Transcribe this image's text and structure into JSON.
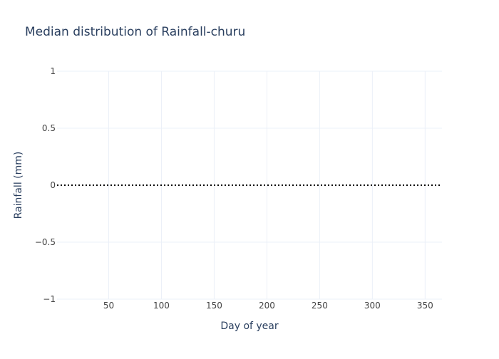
{
  "chart_data": {
    "type": "line",
    "title": "Median distribution of Rainfall-churu",
    "xlabel": "Day of year",
    "ylabel": "Rainfall (mm)",
    "xlim": [
      1,
      366
    ],
    "ylim": [
      -1,
      1
    ],
    "x_ticks": [
      50,
      100,
      150,
      200,
      250,
      300,
      350
    ],
    "y_ticks": [
      1,
      0.5,
      0,
      -0.5,
      -1
    ],
    "y_tick_labels": [
      "1",
      "0.5",
      "0",
      "−0.5",
      "−1"
    ],
    "grid": true,
    "legend": "none",
    "series": [
      {
        "x_start": 1,
        "x_end": 366,
        "value": 0,
        "line_style": "dotted",
        "color": "#000000"
      }
    ]
  },
  "colors": {
    "title": "#2a3f5f",
    "axis_text": "#2a3f5f",
    "tick_text": "#444444",
    "grid": "#ebf0f8"
  }
}
